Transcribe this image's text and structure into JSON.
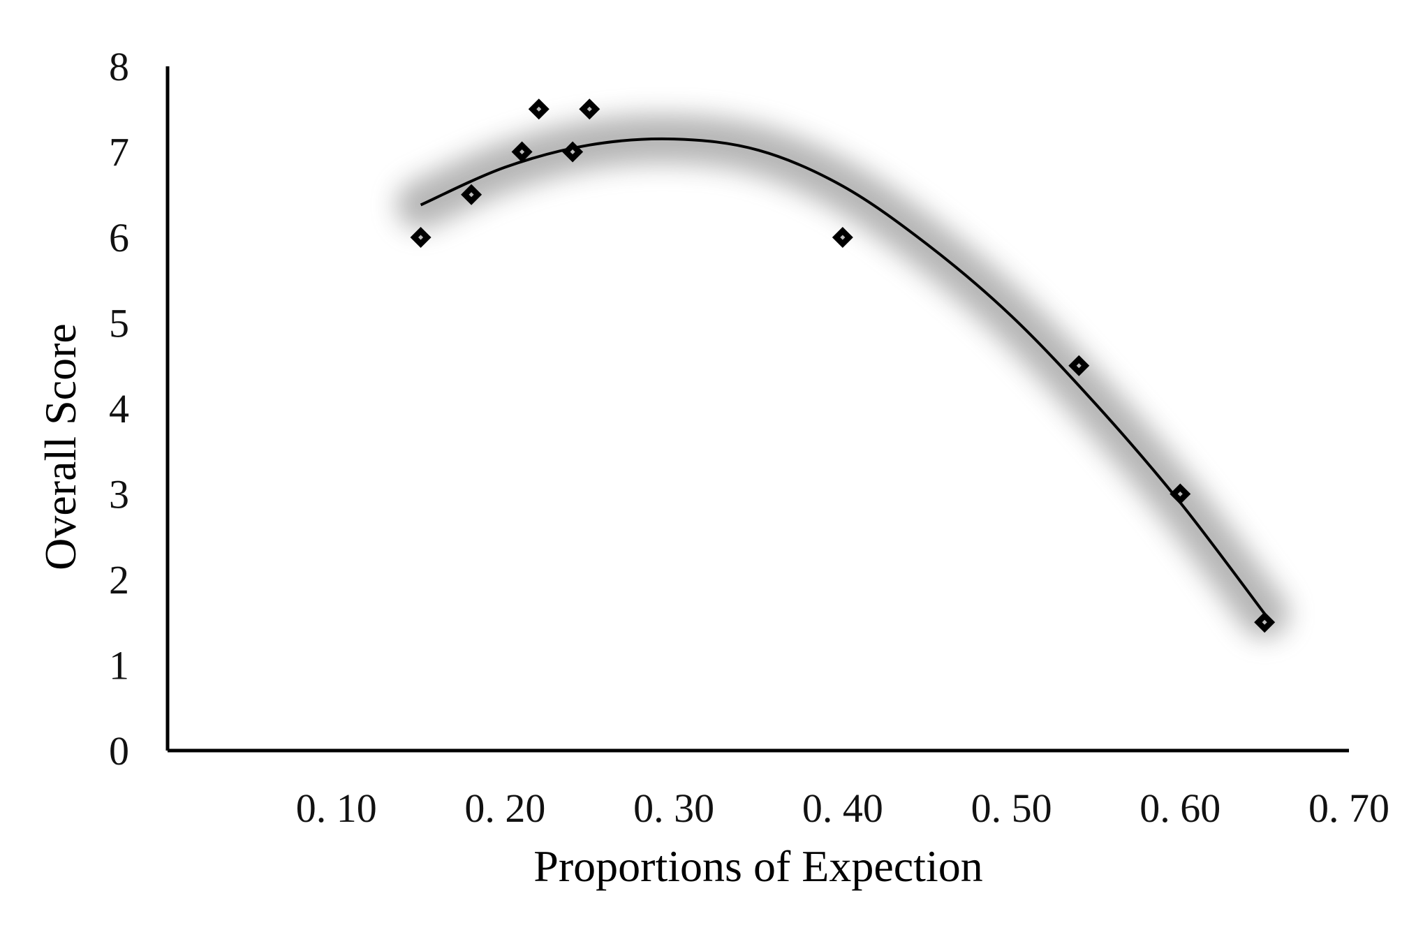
{
  "chart_data": {
    "type": "scatter",
    "title": "",
    "xlabel": "Proportions of Expection",
    "ylabel": "Overall Score",
    "xlim": [
      0.0,
      0.7
    ],
    "ylim": [
      0,
      8
    ],
    "x_ticks": [
      "0. 10",
      "0. 20",
      "0. 30",
      "0. 40",
      "0. 50",
      "0. 60",
      "0. 70"
    ],
    "x_tick_values": [
      0.1,
      0.2,
      0.3,
      0.4,
      0.5,
      0.6,
      0.7
    ],
    "y_ticks": [
      "0",
      "1",
      "2",
      "3",
      "4",
      "5",
      "6",
      "7",
      "8"
    ],
    "y_tick_values": [
      0,
      1,
      2,
      3,
      4,
      5,
      6,
      7,
      8
    ],
    "grid": false,
    "legend": "none",
    "series": [
      {
        "marker": "diamond",
        "color": "#000000",
        "points": [
          {
            "x": 0.15,
            "y": 6.0
          },
          {
            "x": 0.18,
            "y": 6.5
          },
          {
            "x": 0.21,
            "y": 7.0
          },
          {
            "x": 0.22,
            "y": 7.5
          },
          {
            "x": 0.24,
            "y": 7.0
          },
          {
            "x": 0.25,
            "y": 7.5
          },
          {
            "x": 0.4,
            "y": 6.0
          },
          {
            "x": 0.54,
            "y": 4.5
          },
          {
            "x": 0.6,
            "y": 3.0
          },
          {
            "x": 0.65,
            "y": 1.5
          }
        ]
      }
    ],
    "trendline": {
      "type": "polynomial-2",
      "x_range": [
        0.15,
        0.65
      ],
      "points": [
        {
          "x": 0.15,
          "y": 6.38
        },
        {
          "x": 0.2,
          "y": 6.82
        },
        {
          "x": 0.25,
          "y": 7.08
        },
        {
          "x": 0.3,
          "y": 7.15
        },
        {
          "x": 0.35,
          "y": 7.02
        },
        {
          "x": 0.4,
          "y": 6.6
        },
        {
          "x": 0.45,
          "y": 5.92
        },
        {
          "x": 0.5,
          "y": 5.08
        },
        {
          "x": 0.55,
          "y": 4.05
        },
        {
          "x": 0.6,
          "y": 2.9
        },
        {
          "x": 0.65,
          "y": 1.6
        }
      ],
      "color": "#000000",
      "glow_color": "#7a7a7a"
    }
  }
}
